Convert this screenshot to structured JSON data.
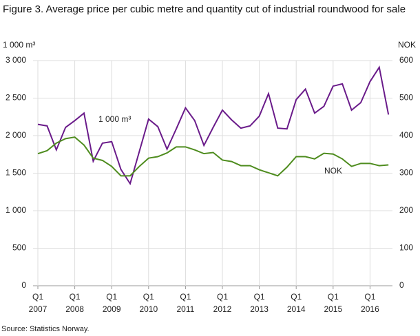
{
  "chart_data": {
    "type": "line",
    "title": "Figure 3. Average price per cubic metre and quantity cut of industrial roundwood for sale",
    "source": "Source: Statistics Norway.",
    "y_label": "1 000 m³",
    "y2_label": "NOK",
    "categories": [
      "Q1",
      null,
      null,
      null,
      "Q1",
      null,
      null,
      null,
      "Q1",
      null,
      null,
      null,
      "Q1",
      null,
      null,
      null,
      "Q1",
      null,
      null,
      null,
      "Q1",
      null,
      null,
      null,
      "Q1",
      null,
      null,
      null,
      "Q1",
      null,
      null,
      null,
      "Q1",
      null,
      null,
      null,
      "Q1",
      null,
      null
    ],
    "category_years": [
      "2007",
      null,
      null,
      null,
      "2008",
      null,
      null,
      null,
      "2009",
      null,
      null,
      null,
      "2010",
      null,
      null,
      null,
      "2011",
      null,
      null,
      null,
      "2012",
      null,
      null,
      null,
      "2013",
      null,
      null,
      null,
      "2014",
      null,
      null,
      null,
      "2015",
      null,
      null,
      null,
      "2016",
      null,
      null
    ],
    "series": [
      {
        "name": "1 000 m³",
        "color": "#6a1b8a",
        "values": [
          2150,
          2130,
          1810,
          2110,
          2200,
          2300,
          1660,
          1900,
          1920,
          1550,
          1360,
          1790,
          2220,
          2120,
          1820,
          2090,
          2370,
          2200,
          1870,
          2110,
          2340,
          2210,
          2100,
          2130,
          2260,
          2560,
          2100,
          2090,
          2480,
          2620,
          2300,
          2390,
          2660,
          2690,
          2340,
          2440,
          2720,
          2910,
          2280
        ]
      },
      {
        "name": "NOK",
        "color": "#4e8c1e",
        "axis": "y2",
        "values": [
          352,
          360,
          380,
          392,
          396,
          375,
          340,
          334,
          318,
          293,
          293,
          318,
          340,
          344,
          354,
          370,
          370,
          362,
          352,
          355,
          335,
          331,
          320,
          320,
          309,
          301,
          293,
          316,
          344,
          344,
          338,
          353,
          351,
          338,
          318,
          326,
          326,
          320,
          322
        ]
      }
    ],
    "ylim": [
      0,
      3000
    ],
    "yticks": [
      0,
      500,
      {
        "value": 1000,
        "label": "1 000"
      },
      {
        "value": 1500,
        "label": "1 500"
      },
      {
        "value": 2000,
        "label": "2 000"
      },
      {
        "value": 2500,
        "label": "2 500"
      },
      {
        "value": 3000,
        "label": "3 000"
      }
    ],
    "y2lim": [
      0,
      600
    ],
    "y2ticks": [
      0,
      100,
      200,
      300,
      400,
      500,
      600
    ],
    "grid": true
  }
}
